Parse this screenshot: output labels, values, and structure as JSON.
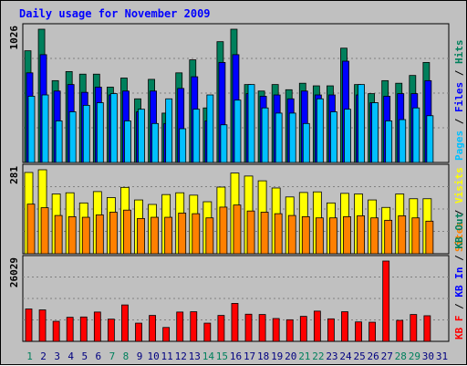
{
  "title": "Daily usage for November 2009",
  "colors": {
    "hits": "#00805c",
    "files": "#0000ff",
    "pages": "#00c0ff",
    "visits": "#ffff00",
    "sites": "#ff8000",
    "kbin": "#ff0000",
    "bg": "#c0c0c0",
    "weekend_label": "#00805c",
    "weekday_label": "#000080"
  },
  "chart_data": [
    {
      "type": "bar",
      "title": "Daily usage for November 2009",
      "ylabel_parts": [
        "Pages",
        "Files",
        "Hits"
      ],
      "ymax_label": "1026",
      "ylim": [
        0,
        1026
      ],
      "categories": [
        "1",
        "2",
        "3",
        "4",
        "5",
        "6",
        "7",
        "8",
        "9",
        "10",
        "11",
        "12",
        "13",
        "14",
        "15",
        "16",
        "17",
        "18",
        "19",
        "20",
        "21",
        "22",
        "23",
        "24",
        "25",
        "26",
        "27",
        "28",
        "29",
        "30",
        "31"
      ],
      "weekend_days": [
        "1",
        "7",
        "8",
        "14",
        "15",
        "21",
        "22",
        "28",
        "29"
      ],
      "series": [
        {
          "name": "Hits",
          "values": [
            860,
            1026,
            630,
            700,
            680,
            680,
            580,
            650,
            490,
            640,
            380,
            690,
            790,
            420,
            930,
            1026,
            600,
            550,
            600,
            560,
            610,
            590,
            590,
            880,
            600,
            530,
            630,
            610,
            670,
            770,
            null
          ]
        },
        {
          "name": "Files",
          "values": [
            690,
            830,
            550,
            600,
            540,
            580,
            520,
            550,
            390,
            550,
            300,
            570,
            660,
            320,
            770,
            830,
            530,
            510,
            520,
            490,
            550,
            520,
            520,
            780,
            520,
            460,
            510,
            530,
            530,
            630,
            null
          ]
        },
        {
          "name": "Pages",
          "values": [
            510,
            520,
            320,
            390,
            440,
            460,
            530,
            320,
            410,
            300,
            490,
            260,
            410,
            520,
            290,
            480,
            600,
            420,
            380,
            380,
            300,
            490,
            390,
            410,
            600,
            460,
            320,
            330,
            420,
            360,
            null
          ]
        }
      ]
    },
    {
      "type": "bar",
      "ylabel_parts": [
        "Sites",
        "Visits"
      ],
      "ymax_label": "281",
      "ylim": [
        0,
        281
      ],
      "categories": [
        "1",
        "2",
        "3",
        "4",
        "5",
        "6",
        "7",
        "8",
        "9",
        "10",
        "11",
        "12",
        "13",
        "14",
        "15",
        "16",
        "17",
        "18",
        "19",
        "20",
        "21",
        "22",
        "23",
        "24",
        "25",
        "26",
        "27",
        "28",
        "29",
        "30",
        "31"
      ],
      "series": [
        {
          "name": "Visits",
          "values": [
            272,
            281,
            200,
            204,
            170,
            208,
            188,
            222,
            180,
            165,
            198,
            204,
            196,
            174,
            223,
            270,
            260,
            244,
            220,
            190,
            205,
            207,
            170,
            202,
            200,
            180,
            155,
            200,
            184,
            184,
            null
          ]
        },
        {
          "name": "Sites",
          "values": [
            166,
            154,
            128,
            124,
            122,
            130,
            139,
            146,
            118,
            122,
            122,
            136,
            134,
            120,
            156,
            163,
            143,
            139,
            134,
            128,
            124,
            120,
            120,
            124,
            127,
            120,
            112,
            127,
            120,
            109,
            null
          ]
        }
      ]
    },
    {
      "type": "bar",
      "ylabel_parts": [
        "KB F",
        "KB In",
        "KB Out"
      ],
      "ymax_label": "26029",
      "ylim": [
        0,
        26029
      ],
      "categories": [
        "1",
        "2",
        "3",
        "4",
        "5",
        "6",
        "7",
        "8",
        "9",
        "10",
        "11",
        "12",
        "13",
        "14",
        "15",
        "16",
        "17",
        "18",
        "19",
        "20",
        "21",
        "22",
        "23",
        "24",
        "25",
        "26",
        "27",
        "28",
        "29",
        "30",
        "31"
      ],
      "series": [
        {
          "name": "KB F",
          "values": [
            10500,
            10200,
            6500,
            7800,
            7900,
            9500,
            7200,
            11800,
            5900,
            8400,
            4500,
            9500,
            9600,
            5900,
            8400,
            12300,
            8800,
            8700,
            7400,
            7000,
            8100,
            9800,
            7300,
            9600,
            6300,
            6200,
            26029,
            6800,
            8700,
            8300,
            null
          ]
        }
      ]
    }
  ]
}
